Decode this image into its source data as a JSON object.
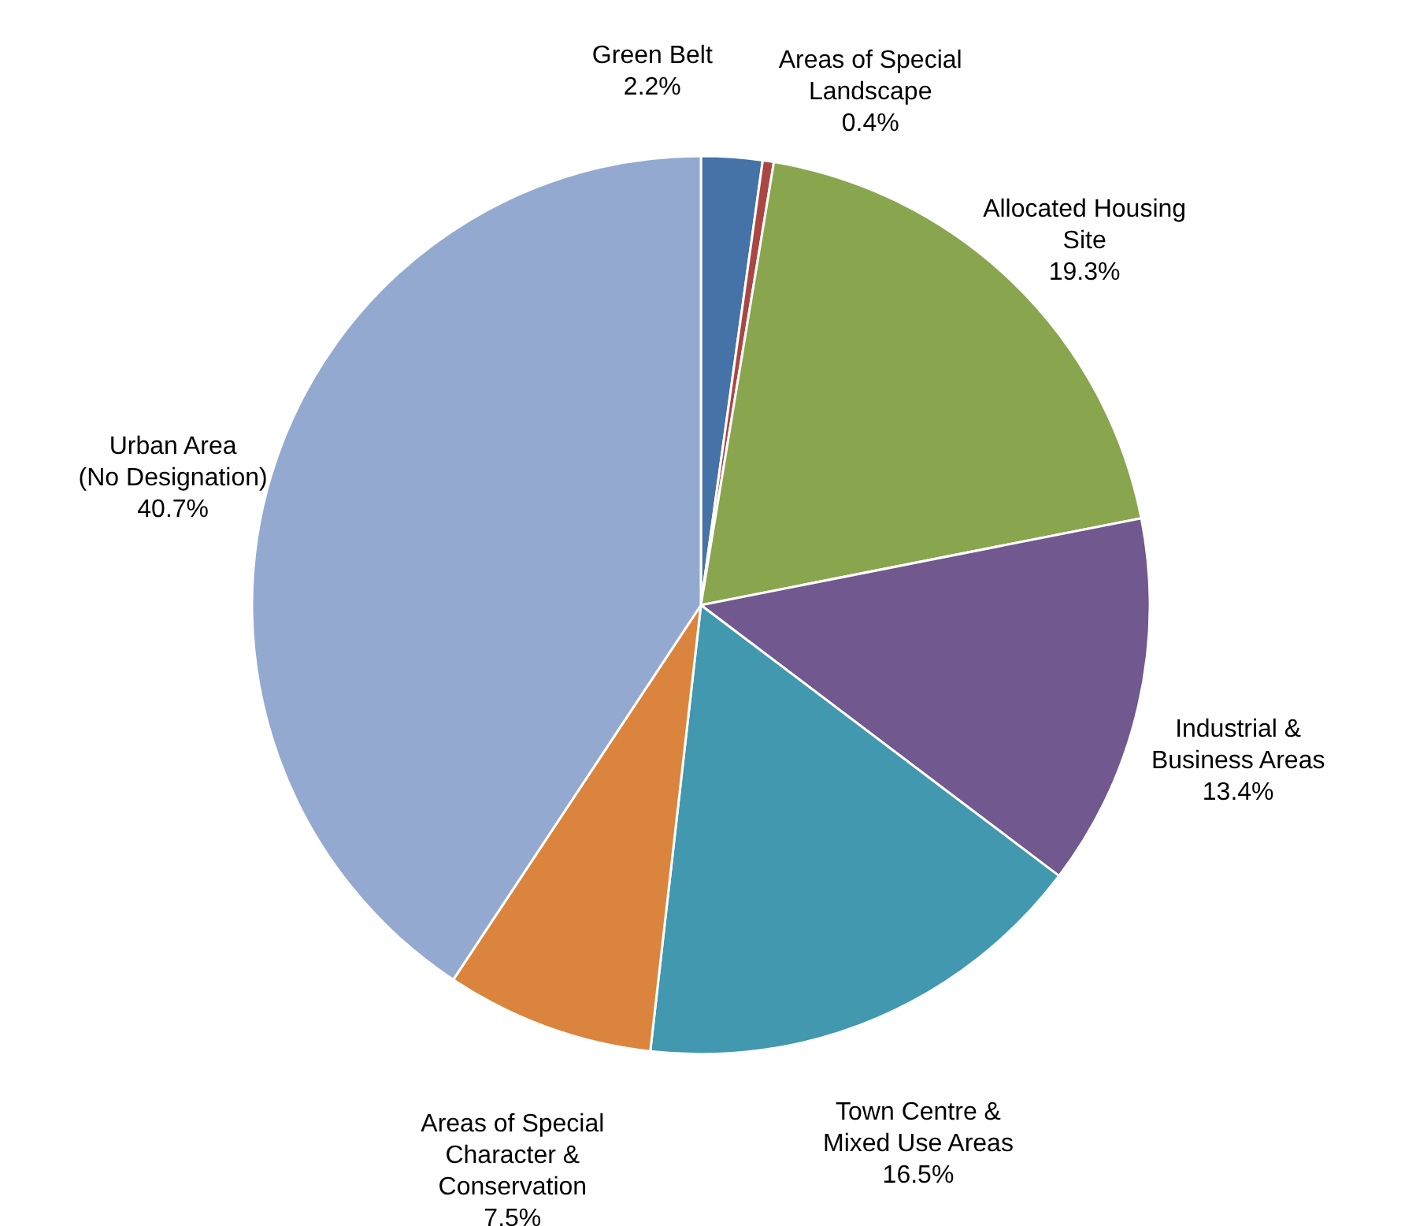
{
  "chart_data": {
    "type": "pie",
    "categories": [
      "Green Belt",
      "Areas of Special\nLandscape",
      "Allocated Housing\nSite",
      "Industrial &\nBusiness Areas",
      "Town Centre &\nMixed Use Areas",
      "Areas of Special\nCharacter &\nConservation",
      "Urban Area\n(No Designation)"
    ],
    "values": [
      2.2,
      0.4,
      19.3,
      13.4,
      16.5,
      7.5,
      40.7
    ],
    "value_labels": [
      "2.2%",
      "0.4%",
      "19.3%",
      "13.4%",
      "16.5%",
      "7.5%",
      "40.7%"
    ],
    "colors": [
      "#4572a7",
      "#aa4643",
      "#89a54e",
      "#71588f",
      "#4198af",
      "#db843d",
      "#93a9cf"
    ],
    "legend": false
  }
}
